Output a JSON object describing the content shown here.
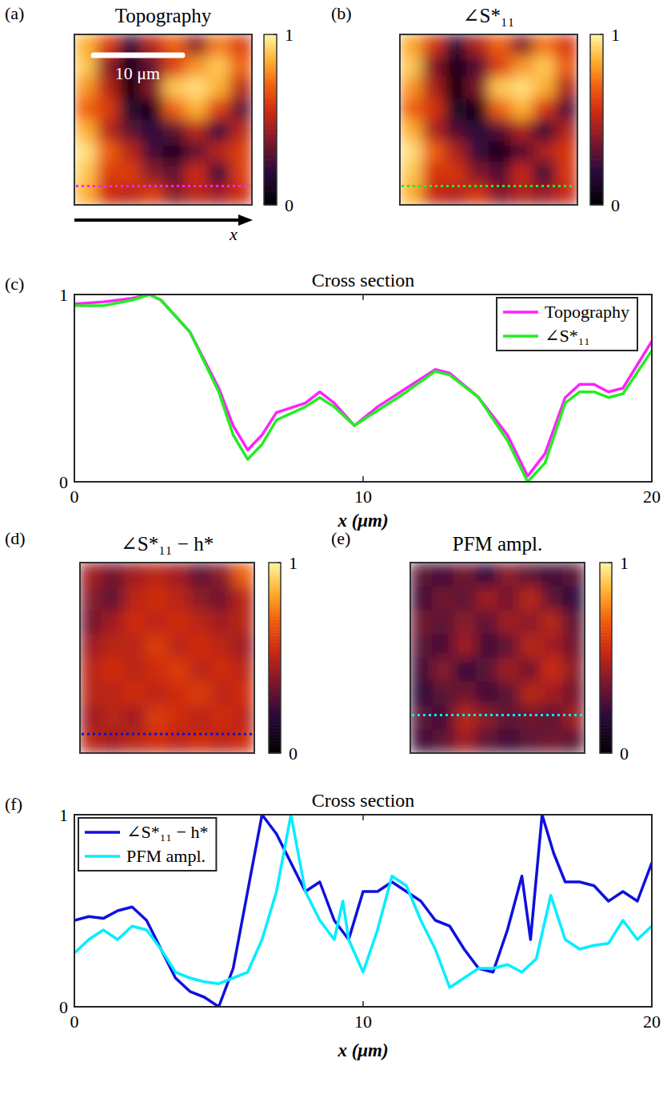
{
  "chart_data": [
    {
      "panel_label": "(a)",
      "type": "heatmap",
      "title": "Topography",
      "cells": [
        [
          0.85,
          0.6,
          0.2,
          0.5,
          0.7,
          0.4,
          0.75,
          0.6
        ],
        [
          0.9,
          0.4,
          0.1,
          0.3,
          0.6,
          0.8,
          0.9,
          0.7
        ],
        [
          0.8,
          0.5,
          0.05,
          0.4,
          0.9,
          0.95,
          0.85,
          0.5
        ],
        [
          0.7,
          0.6,
          0.15,
          0.1,
          0.7,
          0.85,
          0.6,
          0.3
        ],
        [
          0.85,
          0.5,
          0.3,
          0.2,
          0.3,
          0.5,
          0.2,
          0.5
        ],
        [
          0.95,
          0.7,
          0.5,
          0.25,
          0.1,
          0.3,
          0.5,
          0.6
        ],
        [
          0.9,
          0.6,
          0.6,
          0.4,
          0.3,
          0.55,
          0.2,
          0.6
        ],
        [
          0.85,
          0.55,
          0.5,
          0.6,
          0.4,
          0.5,
          0.45,
          0.55
        ]
      ],
      "colorbar_range": [
        0,
        1
      ],
      "colorbar_ticks": [
        0,
        1
      ],
      "annotations": [
        "10 μm",
        "x"
      ]
    },
    {
      "panel_label": "(b)",
      "type": "heatmap",
      "title": "∠S*₁₁",
      "cells": [
        [
          0.83,
          0.58,
          0.18,
          0.48,
          0.7,
          0.38,
          0.74,
          0.58
        ],
        [
          0.9,
          0.38,
          0.08,
          0.28,
          0.6,
          0.8,
          0.9,
          0.68
        ],
        [
          0.8,
          0.48,
          0.03,
          0.38,
          0.9,
          0.95,
          0.85,
          0.48
        ],
        [
          0.7,
          0.58,
          0.13,
          0.08,
          0.7,
          0.85,
          0.58,
          0.28
        ],
        [
          0.85,
          0.48,
          0.28,
          0.18,
          0.28,
          0.48,
          0.18,
          0.48
        ],
        [
          0.95,
          0.7,
          0.48,
          0.23,
          0.08,
          0.28,
          0.48,
          0.58
        ],
        [
          0.9,
          0.58,
          0.58,
          0.38,
          0.28,
          0.53,
          0.18,
          0.58
        ],
        [
          0.85,
          0.53,
          0.48,
          0.58,
          0.38,
          0.48,
          0.43,
          0.53
        ]
      ],
      "colorbar_range": [
        0,
        1
      ],
      "colorbar_ticks": [
        0,
        1
      ]
    },
    {
      "panel_label": "(c)",
      "type": "line",
      "title": "Cross section",
      "x_label": "x (μm)",
      "x": [
        0,
        1,
        2,
        2.6,
        3,
        4,
        5,
        5.5,
        6,
        6.5,
        7,
        8,
        8.5,
        9,
        9.7,
        10.5,
        11.5,
        12.5,
        13,
        14,
        15,
        15.7,
        16.3,
        17,
        17.5,
        18,
        18.5,
        19,
        20
      ],
      "series": [
        {
          "name": "Topography",
          "color": "#ff22ff",
          "values": [
            0.95,
            0.96,
            0.98,
            1.0,
            0.97,
            0.8,
            0.5,
            0.3,
            0.17,
            0.25,
            0.37,
            0.42,
            0.48,
            0.42,
            0.3,
            0.4,
            0.5,
            0.6,
            0.58,
            0.45,
            0.25,
            0.03,
            0.15,
            0.45,
            0.52,
            0.52,
            0.48,
            0.5,
            0.75
          ]
        },
        {
          "name": "∠S*₁₁",
          "color": "#22ee22",
          "values": [
            0.94,
            0.94,
            0.97,
            1.0,
            0.97,
            0.8,
            0.48,
            0.25,
            0.12,
            0.2,
            0.33,
            0.4,
            0.45,
            0.4,
            0.3,
            0.38,
            0.48,
            0.59,
            0.57,
            0.45,
            0.22,
            0.0,
            0.1,
            0.42,
            0.48,
            0.48,
            0.45,
            0.47,
            0.7
          ]
        }
      ],
      "xlim": [
        0,
        20
      ],
      "ylim": [
        0,
        1
      ],
      "xticks": [
        0,
        10,
        20
      ],
      "yticks": [
        0,
        1
      ],
      "legend": "upper right"
    },
    {
      "panel_label": "(d)",
      "type": "heatmap",
      "title": "∠S*₁₁ − h*",
      "cells": [
        [
          0.45,
          0.35,
          0.45,
          0.5,
          0.45,
          0.3,
          0.4,
          0.7
        ],
        [
          0.4,
          0.3,
          0.5,
          0.55,
          0.5,
          0.4,
          0.35,
          0.5
        ],
        [
          0.35,
          0.45,
          0.55,
          0.5,
          0.55,
          0.5,
          0.45,
          0.5
        ],
        [
          0.45,
          0.5,
          0.5,
          0.6,
          0.5,
          0.55,
          0.5,
          0.45
        ],
        [
          0.5,
          0.55,
          0.5,
          0.55,
          0.6,
          0.5,
          0.55,
          0.5
        ],
        [
          0.5,
          0.5,
          0.55,
          0.5,
          0.55,
          0.6,
          0.5,
          0.55
        ],
        [
          0.45,
          0.5,
          0.45,
          0.6,
          0.55,
          0.5,
          0.55,
          0.5
        ],
        [
          0.5,
          0.45,
          0.5,
          0.55,
          0.5,
          0.55,
          0.5,
          0.55
        ]
      ],
      "colorbar_range": [
        0,
        1
      ],
      "colorbar_ticks": [
        0,
        1
      ]
    },
    {
      "panel_label": "(e)",
      "type": "heatmap",
      "title": "PFM ampl.",
      "cells": [
        [
          0.3,
          0.25,
          0.35,
          0.2,
          0.4,
          0.3,
          0.25,
          0.3
        ],
        [
          0.25,
          0.35,
          0.3,
          0.45,
          0.35,
          0.5,
          0.3,
          0.2
        ],
        [
          0.35,
          0.3,
          0.4,
          0.3,
          0.45,
          0.4,
          0.5,
          0.3
        ],
        [
          0.3,
          0.25,
          0.45,
          0.25,
          0.3,
          0.5,
          0.45,
          0.35
        ],
        [
          0.25,
          0.4,
          0.2,
          0.3,
          0.45,
          0.35,
          0.55,
          0.4
        ],
        [
          0.2,
          0.3,
          0.35,
          0.25,
          0.3,
          0.5,
          0.45,
          0.35
        ],
        [
          0.3,
          0.25,
          0.5,
          0.4,
          0.3,
          0.35,
          0.3,
          0.45
        ],
        [
          0.25,
          0.3,
          0.45,
          0.3,
          0.25,
          0.3,
          0.35,
          0.3
        ]
      ],
      "colorbar_range": [
        0,
        1
      ],
      "colorbar_ticks": [
        0,
        1
      ]
    },
    {
      "panel_label": "(f)",
      "type": "line",
      "title": "Cross section",
      "x_label": "x (μm)",
      "series": [
        {
          "name": "∠S*₁₁ − h*",
          "color": "#1010dd",
          "x": [
            0,
            0.5,
            1,
            1.5,
            2,
            2.5,
            3,
            3.5,
            4,
            4.5,
            5,
            5.5,
            6,
            6.5,
            7,
            7.5,
            8,
            8.5,
            9,
            9.5,
            10,
            10.5,
            11,
            11.5,
            12,
            12.5,
            13,
            13.5,
            14,
            14.5,
            15,
            15.5,
            15.8,
            16.2,
            16.6,
            17,
            17.5,
            18,
            18.5,
            19,
            19.5,
            20
          ],
          "values": [
            0.45,
            0.47,
            0.46,
            0.5,
            0.52,
            0.45,
            0.3,
            0.15,
            0.08,
            0.05,
            0.0,
            0.2,
            0.6,
            1.0,
            0.9,
            0.75,
            0.6,
            0.65,
            0.45,
            0.35,
            0.6,
            0.6,
            0.65,
            0.6,
            0.55,
            0.45,
            0.42,
            0.3,
            0.2,
            0.18,
            0.4,
            0.68,
            0.35,
            1.0,
            0.8,
            0.65,
            0.65,
            0.63,
            0.55,
            0.6,
            0.55,
            0.75
          ]
        },
        {
          "name": "PFM ampl.",
          "color": "#00eeff",
          "x": [
            0,
            0.5,
            1,
            1.5,
            2,
            2.5,
            3,
            3.5,
            4,
            4.5,
            5,
            5.5,
            6,
            6.5,
            7,
            7.5,
            8,
            8.5,
            9,
            9.3,
            9.5,
            10,
            10.5,
            11,
            11.5,
            12,
            12.5,
            13,
            13.5,
            14,
            14.5,
            15,
            15.5,
            16,
            16.5,
            17,
            17.5,
            18,
            18.5,
            19,
            19.5,
            20
          ],
          "values": [
            0.28,
            0.35,
            0.4,
            0.35,
            0.42,
            0.4,
            0.3,
            0.18,
            0.15,
            0.13,
            0.12,
            0.15,
            0.18,
            0.35,
            0.6,
            1.0,
            0.6,
            0.45,
            0.35,
            0.55,
            0.35,
            0.18,
            0.4,
            0.68,
            0.63,
            0.45,
            0.3,
            0.1,
            0.15,
            0.2,
            0.2,
            0.22,
            0.18,
            0.25,
            0.58,
            0.35,
            0.3,
            0.32,
            0.33,
            0.45,
            0.35,
            0.42
          ]
        }
      ],
      "xlim": [
        0,
        20
      ],
      "ylim": [
        0,
        1
      ],
      "xticks": [
        0,
        10,
        20
      ],
      "yticks": [
        0,
        1
      ],
      "legend": "upper left"
    }
  ]
}
